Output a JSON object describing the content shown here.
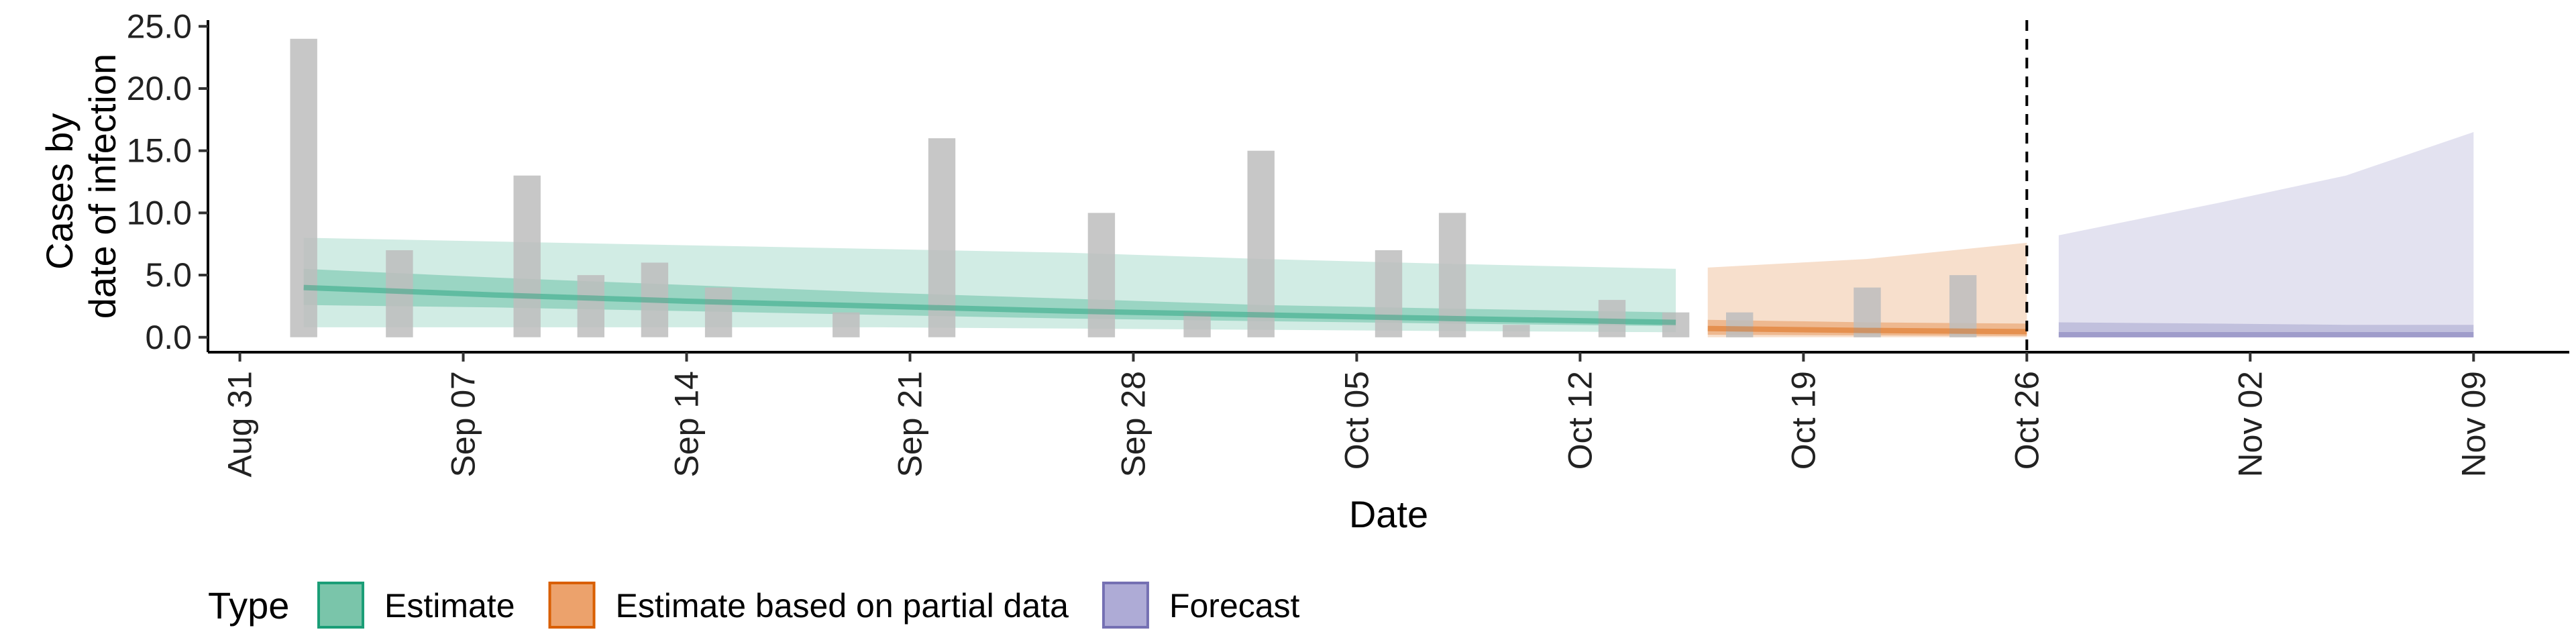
{
  "chart_data": {
    "type": "bar",
    "xlabel": "Date",
    "ylabel_lines": [
      "Cases by",
      "date of infection"
    ],
    "x_range": [
      "2020-08-30",
      "2020-11-12"
    ],
    "ylim": [
      -1.2,
      25.5
    ],
    "y_ticks": [
      0.0,
      5.0,
      10.0,
      15.0,
      20.0,
      25.0
    ],
    "y_tick_labels": [
      "0.0",
      "5.0",
      "10.0",
      "15.0",
      "20.0",
      "25.0"
    ],
    "x_ticks": [
      {
        "date": "2020-08-31",
        "label": "Aug 31"
      },
      {
        "date": "2020-09-07",
        "label": "Sep 07"
      },
      {
        "date": "2020-09-14",
        "label": "Sep 14"
      },
      {
        "date": "2020-09-21",
        "label": "Sep 21"
      },
      {
        "date": "2020-09-28",
        "label": "Sep 28"
      },
      {
        "date": "2020-10-05",
        "label": "Oct 05"
      },
      {
        "date": "2020-10-12",
        "label": "Oct 12"
      },
      {
        "date": "2020-10-19",
        "label": "Oct 19"
      },
      {
        "date": "2020-10-26",
        "label": "Oct 26"
      },
      {
        "date": "2020-11-02",
        "label": "Nov 02"
      },
      {
        "date": "2020-11-09",
        "label": "Nov 09"
      }
    ],
    "reported_cases": [
      {
        "date": "2020-09-02",
        "value": 24
      },
      {
        "date": "2020-09-05",
        "value": 7
      },
      {
        "date": "2020-09-09",
        "value": 13
      },
      {
        "date": "2020-09-11",
        "value": 5
      },
      {
        "date": "2020-09-13",
        "value": 6
      },
      {
        "date": "2020-09-15",
        "value": 4
      },
      {
        "date": "2020-09-19",
        "value": 2
      },
      {
        "date": "2020-09-22",
        "value": 16
      },
      {
        "date": "2020-09-27",
        "value": 10
      },
      {
        "date": "2020-09-30",
        "value": 2
      },
      {
        "date": "2020-10-02",
        "value": 15
      },
      {
        "date": "2020-10-06",
        "value": 7
      },
      {
        "date": "2020-10-08",
        "value": 10
      },
      {
        "date": "2020-10-10",
        "value": 1
      },
      {
        "date": "2020-10-13",
        "value": 3
      },
      {
        "date": "2020-10-15",
        "value": 2
      },
      {
        "date": "2020-10-17",
        "value": 2
      },
      {
        "date": "2020-10-21",
        "value": 4
      },
      {
        "date": "2020-10-24",
        "value": 5
      }
    ],
    "series": [
      {
        "name": "Estimate",
        "color": "#1b9e77",
        "x": [
          "2020-09-02",
          "2020-09-08",
          "2020-09-14",
          "2020-09-20",
          "2020-09-26",
          "2020-10-02",
          "2020-10-08",
          "2020-10-15"
        ],
        "outer_lower": [
          0.8,
          0.8,
          0.8,
          0.8,
          0.7,
          0.6,
          0.5,
          0.4
        ],
        "outer_upper": [
          8.0,
          7.7,
          7.4,
          7.1,
          6.8,
          6.3,
          5.9,
          5.5
        ],
        "inner_lower": [
          2.6,
          2.4,
          2.1,
          1.8,
          1.5,
          1.3,
          1.1,
          0.9
        ],
        "inner_upper": [
          5.5,
          4.8,
          4.2,
          3.6,
          3.1,
          2.6,
          2.3,
          2.0
        ],
        "median": [
          4.0,
          3.4,
          2.9,
          2.5,
          2.1,
          1.8,
          1.5,
          1.2
        ]
      },
      {
        "name": "Estimate based on partial data",
        "color": "#d95f02",
        "x": [
          "2020-10-16",
          "2020-10-21",
          "2020-10-26"
        ],
        "outer_lower": [
          0.0,
          0.0,
          0.0
        ],
        "outer_upper": [
          5.6,
          6.3,
          7.6
        ],
        "inner_lower": [
          0.2,
          0.15,
          0.1
        ],
        "inner_upper": [
          1.4,
          1.2,
          1.1
        ],
        "median": [
          0.7,
          0.55,
          0.45
        ]
      },
      {
        "name": "Forecast",
        "color": "#7570b3",
        "x": [
          "2020-10-27",
          "2020-11-01",
          "2020-11-05",
          "2020-11-09"
        ],
        "outer_lower": [
          0.0,
          0.0,
          0.0,
          0.0
        ],
        "outer_upper": [
          8.2,
          10.8,
          13.0,
          16.5
        ],
        "inner_lower": [
          0.0,
          0.0,
          0.0,
          0.0
        ],
        "inner_upper": [
          1.2,
          1.1,
          1.0,
          1.0
        ],
        "median": [
          0.2,
          0.2,
          0.2,
          0.2
        ]
      }
    ],
    "vline_date": "2020-10-26",
    "legend": {
      "title": "Type",
      "position": "bottom",
      "items": [
        {
          "label": "Estimate",
          "fill": "#7ac5aa",
          "stroke": "#1b9e77"
        },
        {
          "label": "Estimate based on partial data",
          "fill": "#eca26c",
          "stroke": "#d95f02"
        },
        {
          "label": "Forecast",
          "fill": "#aeabd6",
          "stroke": "#7570b3"
        }
      ]
    },
    "colors": {
      "bars": "#bdbdbd",
      "axis": "#000000"
    }
  }
}
